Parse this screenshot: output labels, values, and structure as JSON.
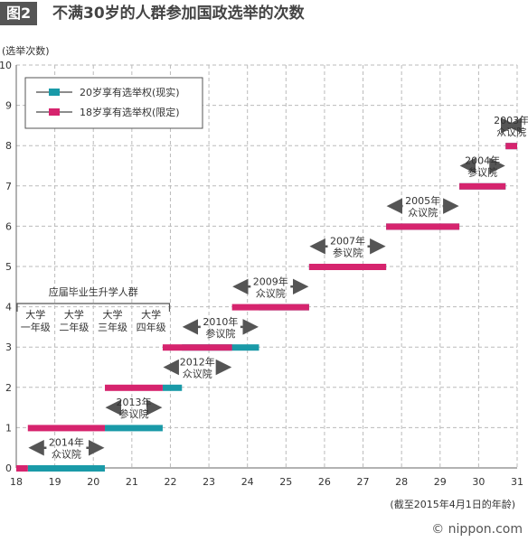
{
  "figure_label": "图2",
  "title": "不满30岁的人群参加国政选举的次数",
  "brand": "© nippon.com",
  "chart_data": {
    "type": "line",
    "ylabel": "(选举次数)",
    "xlabel": "(截至2015年4月1日的年龄)",
    "xlim": [
      18,
      31
    ],
    "ylim": [
      0,
      10
    ],
    "x_ticks": [
      18,
      19,
      20,
      21,
      22,
      23,
      24,
      25,
      26,
      27,
      28,
      29,
      30,
      31
    ],
    "y_ticks": [
      0,
      1,
      2,
      3,
      4,
      5,
      6,
      7,
      8,
      9,
      10
    ],
    "grid": true,
    "legend_position": "top-left",
    "colors": {
      "current": "#1a9aa8",
      "limited": "#d6246e",
      "arrow": "#555555"
    },
    "series": [
      {
        "name": "20岁享有选举权(现实)",
        "key": "current",
        "steps": [
          {
            "x0": 18.3,
            "x1": 20.3,
            "y": 0
          },
          {
            "x0": 20.3,
            "x1": 21.8,
            "y": 1
          },
          {
            "x0": 21.8,
            "x1": 22.3,
            "y": 2
          },
          {
            "x0": 22.3,
            "x1": 24.3,
            "y": 3
          },
          {
            "x0": 24.3,
            "x1": 25.6,
            "y": 4
          },
          {
            "x0": 25.6,
            "x1": 27.6,
            "y": 5
          },
          {
            "x0": 27.6,
            "x1": 29.5,
            "y": 6
          },
          {
            "x0": 29.5,
            "x1": 30.7,
            "y": 7
          },
          {
            "x0": 30.7,
            "x1": 31.0,
            "y": 8
          }
        ]
      },
      {
        "name": "18岁享有选举权(限定)",
        "key": "limited",
        "steps": [
          {
            "x0": 18.0,
            "x1": 18.3,
            "y": 0
          },
          {
            "x0": 18.3,
            "x1": 20.3,
            "y": 1
          },
          {
            "x0": 20.3,
            "x1": 21.8,
            "y": 2
          },
          {
            "x0": 21.8,
            "x1": 23.6,
            "y": 3
          },
          {
            "x0": 23.6,
            "x1": 25.6,
            "y": 4
          },
          {
            "x0": 25.6,
            "x1": 27.6,
            "y": 5
          },
          {
            "x0": 27.6,
            "x1": 29.5,
            "y": 6
          },
          {
            "x0": 29.5,
            "x1": 30.7,
            "y": 7
          },
          {
            "x0": 30.7,
            "x1": 31.0,
            "y": 8
          }
        ]
      }
    ],
    "elections": [
      {
        "line1": "2014年",
        "line2": "众议院",
        "x0": 18.3,
        "x1": 20.3,
        "y": 0.5
      },
      {
        "line1": "2013年",
        "line2": "参议院",
        "x0": 20.3,
        "x1": 21.8,
        "y": 1.5
      },
      {
        "line1": "2012年",
        "line2": "众议院",
        "x0": 21.8,
        "x1": 23.6,
        "y": 2.5
      },
      {
        "line1": "2010年",
        "line2": "参议院",
        "x0": 22.3,
        "x1": 24.3,
        "y": 3.5
      },
      {
        "line1": "2009年",
        "line2": "众议院",
        "x0": 23.6,
        "x1": 25.6,
        "y": 4.5
      },
      {
        "line1": "2007年",
        "line2": "参议院",
        "x0": 25.6,
        "x1": 27.6,
        "y": 5.5
      },
      {
        "line1": "2005年",
        "line2": "众议院",
        "x0": 27.6,
        "x1": 29.5,
        "y": 6.5
      },
      {
        "line1": "2004年",
        "line2": "参议院",
        "x0": 29.5,
        "x1": 30.7,
        "y": 7.5
      },
      {
        "line1": "2003年",
        "line2": "众议院",
        "x0": 30.7,
        "x1": 31.0,
        "y": 8.5
      }
    ],
    "student_annotation": {
      "title": "应届毕业生升学人群",
      "years": [
        {
          "line1": "大学",
          "line2": "一年级"
        },
        {
          "line1": "大学",
          "line2": "二年级"
        },
        {
          "line1": "大学",
          "line2": "三年级"
        },
        {
          "line1": "大学",
          "line2": "四年级"
        }
      ],
      "x_range": [
        18,
        22
      ]
    }
  }
}
